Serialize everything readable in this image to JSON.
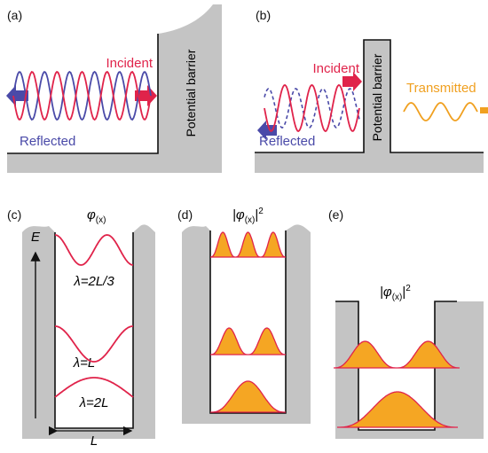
{
  "panels": [
    {
      "label": "(a)",
      "incident": "Incident",
      "reflected": "Reflected",
      "barrier": "Potential barrier"
    },
    {
      "label": "(b)",
      "incident": "Incident",
      "reflected": "Reflected",
      "barrier": "Potential barrier",
      "transmitted": "Transmitted"
    },
    {
      "label": "(c)",
      "function": {
        "symbol": "φ",
        "subscript": "(x)"
      },
      "levels": [
        "λ=2L/3",
        "λ=L",
        "λ=2L"
      ],
      "energy_axis": "E",
      "width": "L"
    },
    {
      "label": "(d)",
      "function": {
        "prefix": "|φ",
        "subscript": "(x)",
        "suffix": "|",
        "superscript": "2"
      }
    },
    {
      "label": "(e)",
      "function": {
        "prefix": "|φ",
        "subscript": "(x)",
        "suffix": "|",
        "superscript": "2"
      }
    }
  ]
}
